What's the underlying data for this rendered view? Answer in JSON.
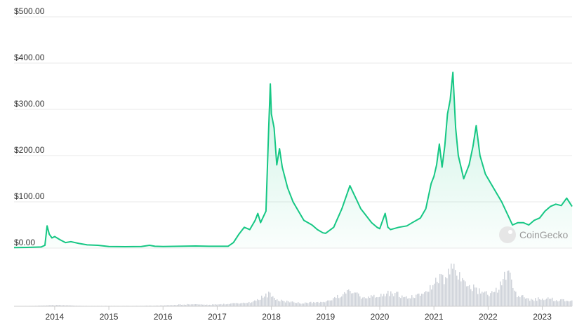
{
  "chart_data": {
    "type": "area",
    "currency_axis": true,
    "y_ticks": [
      "$0.00",
      "$100.00",
      "$200.00",
      "$300.00",
      "$400.00",
      "$500.00"
    ],
    "y_tick_values": [
      0,
      100,
      200,
      300,
      400,
      500
    ],
    "ylim": [
      0,
      500
    ],
    "x_ticks": [
      "2014",
      "2015",
      "2016",
      "2017",
      "2018",
      "2019",
      "2020",
      "2021",
      "2022",
      "2023"
    ],
    "x_tick_values": [
      2014,
      2015,
      2016,
      2017,
      2018,
      2019,
      2020,
      2021,
      2022,
      2023
    ],
    "xlim": [
      2013.25,
      2023.55
    ],
    "grid": true,
    "watermark": "CoinGecko",
    "series": [
      {
        "type": "area",
        "color": "#16c784",
        "points": [
          [
            2013.25,
            1
          ],
          [
            2013.5,
            1.5
          ],
          [
            2013.75,
            2.5
          ],
          [
            2013.82,
            6
          ],
          [
            2013.86,
            48
          ],
          [
            2013.9,
            30
          ],
          [
            2013.95,
            22
          ],
          [
            2014.0,
            25
          ],
          [
            2014.1,
            18
          ],
          [
            2014.2,
            12
          ],
          [
            2014.3,
            14
          ],
          [
            2014.45,
            10
          ],
          [
            2014.6,
            7
          ],
          [
            2014.8,
            6
          ],
          [
            2015.0,
            3.5
          ],
          [
            2015.3,
            3
          ],
          [
            2015.6,
            3.5
          ],
          [
            2015.75,
            6
          ],
          [
            2015.85,
            4
          ],
          [
            2016.0,
            3.5
          ],
          [
            2016.3,
            4
          ],
          [
            2016.6,
            4.5
          ],
          [
            2016.85,
            4
          ],
          [
            2017.0,
            4
          ],
          [
            2017.2,
            4
          ],
          [
            2017.3,
            12
          ],
          [
            2017.4,
            30
          ],
          [
            2017.5,
            45
          ],
          [
            2017.6,
            40
          ],
          [
            2017.7,
            60
          ],
          [
            2017.75,
            75
          ],
          [
            2017.8,
            55
          ],
          [
            2017.9,
            80
          ],
          [
            2017.95,
            260
          ],
          [
            2017.98,
            355
          ],
          [
            2018.0,
            290
          ],
          [
            2018.05,
            260
          ],
          [
            2018.1,
            180
          ],
          [
            2018.15,
            215
          ],
          [
            2018.2,
            175
          ],
          [
            2018.3,
            130
          ],
          [
            2018.4,
            100
          ],
          [
            2018.5,
            80
          ],
          [
            2018.6,
            60
          ],
          [
            2018.75,
            50
          ],
          [
            2018.85,
            40
          ],
          [
            2018.95,
            33
          ],
          [
            2019.0,
            32
          ],
          [
            2019.15,
            45
          ],
          [
            2019.3,
            85
          ],
          [
            2019.45,
            135
          ],
          [
            2019.55,
            110
          ],
          [
            2019.65,
            85
          ],
          [
            2019.75,
            70
          ],
          [
            2019.85,
            55
          ],
          [
            2019.95,
            45
          ],
          [
            2020.0,
            42
          ],
          [
            2020.1,
            75
          ],
          [
            2020.15,
            45
          ],
          [
            2020.2,
            40
          ],
          [
            2020.35,
            45
          ],
          [
            2020.5,
            48
          ],
          [
            2020.6,
            55
          ],
          [
            2020.75,
            65
          ],
          [
            2020.85,
            85
          ],
          [
            2020.95,
            140
          ],
          [
            2021.0,
            155
          ],
          [
            2021.05,
            180
          ],
          [
            2021.1,
            225
          ],
          [
            2021.15,
            175
          ],
          [
            2021.2,
            220
          ],
          [
            2021.25,
            290
          ],
          [
            2021.3,
            320
          ],
          [
            2021.35,
            380
          ],
          [
            2021.4,
            260
          ],
          [
            2021.45,
            200
          ],
          [
            2021.55,
            150
          ],
          [
            2021.65,
            180
          ],
          [
            2021.72,
            220
          ],
          [
            2021.78,
            265
          ],
          [
            2021.85,
            200
          ],
          [
            2021.95,
            160
          ],
          [
            2022.05,
            140
          ],
          [
            2022.15,
            120
          ],
          [
            2022.25,
            100
          ],
          [
            2022.35,
            75
          ],
          [
            2022.45,
            50
          ],
          [
            2022.55,
            55
          ],
          [
            2022.65,
            55
          ],
          [
            2022.75,
            50
          ],
          [
            2022.85,
            60
          ],
          [
            2022.95,
            65
          ],
          [
            2023.05,
            80
          ],
          [
            2023.15,
            90
          ],
          [
            2023.25,
            95
          ],
          [
            2023.35,
            92
          ],
          [
            2023.45,
            108
          ],
          [
            2023.55,
            90
          ]
        ]
      },
      {
        "type": "volume",
        "color": "#cfd3da",
        "points": [
          [
            2013.25,
            0
          ],
          [
            2013.8,
            0.02
          ],
          [
            2014.0,
            0.03
          ],
          [
            2014.5,
            0.01
          ],
          [
            2015.0,
            0.01
          ],
          [
            2015.5,
            0.01
          ],
          [
            2016.0,
            0.02
          ],
          [
            2016.3,
            0.04
          ],
          [
            2016.6,
            0.05
          ],
          [
            2016.9,
            0.04
          ],
          [
            2017.2,
            0.06
          ],
          [
            2017.6,
            0.1
          ],
          [
            2017.95,
            0.3
          ],
          [
            2018.1,
            0.15
          ],
          [
            2018.5,
            0.08
          ],
          [
            2019.0,
            0.1
          ],
          [
            2019.2,
            0.25
          ],
          [
            2019.45,
            0.35
          ],
          [
            2019.7,
            0.2
          ],
          [
            2020.0,
            0.25
          ],
          [
            2020.2,
            0.35
          ],
          [
            2020.5,
            0.2
          ],
          [
            2020.8,
            0.3
          ],
          [
            2021.0,
            0.55
          ],
          [
            2021.2,
            0.75
          ],
          [
            2021.35,
            1.0
          ],
          [
            2021.5,
            0.6
          ],
          [
            2021.8,
            0.4
          ],
          [
            2022.1,
            0.3
          ],
          [
            2022.35,
            0.85
          ],
          [
            2022.5,
            0.3
          ],
          [
            2022.8,
            0.15
          ],
          [
            2023.0,
            0.2
          ],
          [
            2023.3,
            0.15
          ],
          [
            2023.55,
            0.12
          ]
        ]
      }
    ]
  }
}
